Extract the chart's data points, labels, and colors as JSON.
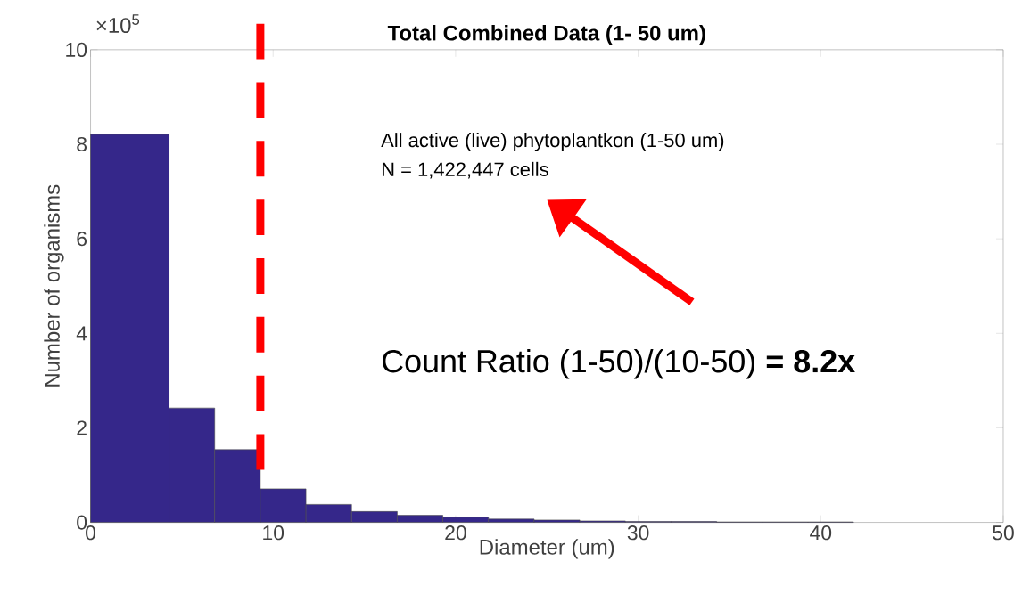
{
  "chart_data": {
    "type": "histogram",
    "title": "Total Combined Data (1- 50 um)",
    "xlabel": "Diameter (um)",
    "ylabel": "Number of organisms",
    "bins": [
      0,
      4.3,
      6.8,
      9.3,
      11.8,
      14.3,
      16.8,
      19.3,
      21.8,
      24.3,
      26.8,
      29.3,
      31.8,
      34.3,
      36.8,
      39.3,
      41.8
    ],
    "values": [
      8.21,
      2.42,
      1.54,
      0.71,
      0.38,
      0.23,
      0.15,
      0.11,
      0.07,
      0.05,
      0.03,
      0.02,
      0.02,
      0.01,
      0.01,
      0.01
    ],
    "color": "#35278a",
    "xlim": [
      0,
      50
    ],
    "xticks": [
      0,
      10,
      20,
      30,
      40,
      50
    ],
    "ylim": [
      0,
      10
    ],
    "yticks": [
      0,
      2,
      4,
      6,
      8,
      10
    ],
    "ref_lines": [
      {
        "axis": "x",
        "value": 9.3,
        "color": "#ff0000",
        "line_style": "dashed"
      }
    ],
    "annotations": [
      "×10$^{5}$",
      "All active (live) phytoplantkon (1-50 um)",
      "N = 1,422,447 cells",
      "Count Ratio (1-50)/(10-50) **= 8.2x**"
    ]
  }
}
